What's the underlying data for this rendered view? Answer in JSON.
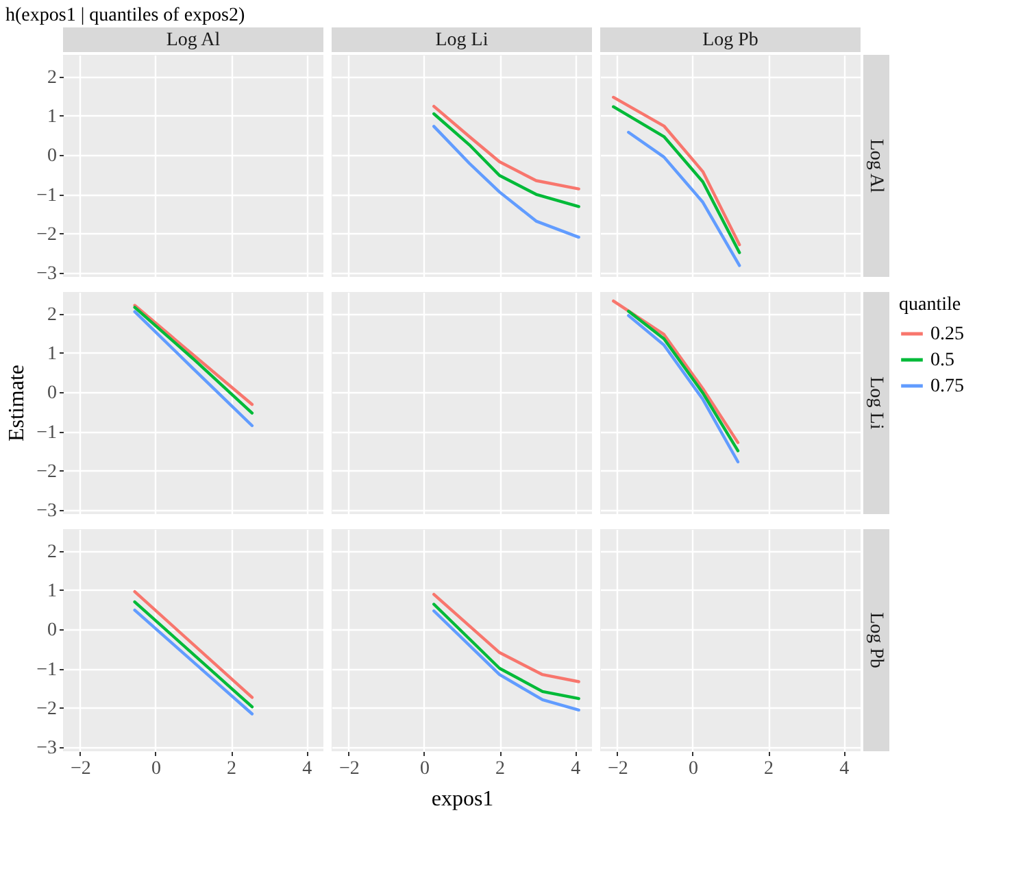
{
  "chart_data": [
    {
      "type": "line",
      "title": "h(expos1 | quantiles of expos2)",
      "subtitle": "Log Al",
      "xlim": [
        -2.45,
        4.45
      ],
      "ylim": [
        -3.1,
        2.55
      ],
      "xticks": [
        -2,
        0,
        2,
        4
      ],
      "yticks": [
        -3,
        -2,
        -1,
        0,
        1,
        2
      ],
      "grid": true,
      "tick_labels": "y"
    },
    {
      "type": "line",
      "subtitle": "Log Li",
      "xlim": [
        -2.45,
        4.45
      ],
      "ylim": [
        -3.1,
        2.55
      ],
      "xticks": [
        -2,
        0,
        2,
        4
      ],
      "yticks": [
        -3,
        -2,
        -1,
        0,
        1,
        2
      ],
      "grid": true,
      "tick_labels": false,
      "series": [
        {
          "color": "#f8766d",
          "x": [
            0.26,
            1.2,
            2.0,
            2.97,
            4.1
          ],
          "values": [
            1.24,
            0.47,
            -0.17,
            -0.65,
            -0.86
          ]
        },
        {
          "color": "#00ba38",
          "x": [
            0.26,
            1.2,
            2.0,
            2.97,
            4.1
          ],
          "values": [
            1.05,
            0.26,
            -0.52,
            -1.0,
            -1.31
          ]
        },
        {
          "color": "#619cff",
          "x": [
            0.26,
            1.2,
            2.0,
            2.97,
            4.1
          ],
          "values": [
            0.73,
            -0.21,
            -0.94,
            -1.68,
            -2.09
          ]
        }
      ]
    },
    {
      "type": "line",
      "subtitle": "Log Pb",
      "y2label": "Log Al",
      "xlim": [
        -2.45,
        4.45
      ],
      "ylim": [
        -3.1,
        2.55
      ],
      "xticks": [
        -2,
        0,
        2,
        4
      ],
      "yticks": [
        -3,
        -2,
        -1,
        0,
        1,
        2
      ],
      "grid": true,
      "tick_labels": false,
      "series": [
        {
          "color": "#f8766d",
          "x": [
            -2.1,
            -0.76,
            0.27,
            1.24
          ],
          "values": [
            1.47,
            0.74,
            -0.42,
            -2.28
          ]
        },
        {
          "color": "#00ba38",
          "x": [
            -2.1,
            -0.76,
            0.27,
            1.24
          ],
          "values": [
            1.23,
            0.47,
            -0.68,
            -2.48
          ]
        },
        {
          "color": "#619cff",
          "x": [
            -1.7,
            -0.76,
            0.27,
            1.24
          ],
          "values": [
            0.58,
            -0.05,
            -1.2,
            -2.81
          ]
        }
      ]
    },
    {
      "type": "line",
      "ylabel": "Estimate",
      "xlim": [
        -2.45,
        4.45
      ],
      "ylim": [
        -3.1,
        2.55
      ],
      "xticks": [
        -2,
        0,
        2,
        4
      ],
      "yticks": [
        -3,
        -2,
        -1,
        0,
        1,
        2
      ],
      "grid": true,
      "tick_labels": "y",
      "series": [
        {
          "color": "#f8766d",
          "x": [
            -0.55,
            1.0,
            2.56
          ],
          "values": [
            2.21,
            0.95,
            -0.31
          ]
        },
        {
          "color": "#00ba38",
          "x": [
            -0.55,
            1.0,
            2.56
          ],
          "values": [
            2.16,
            0.85,
            -0.53
          ]
        },
        {
          "color": "#619cff",
          "x": [
            -0.55,
            1.0,
            2.56
          ],
          "values": [
            2.05,
            0.6,
            -0.85
          ]
        }
      ]
    },
    {
      "type": "line",
      "xlim": [
        -2.45,
        4.45
      ],
      "ylim": [
        -3.1,
        2.55
      ],
      "xticks": [
        -2,
        0,
        2,
        4
      ],
      "yticks": [
        -3,
        -2,
        -1,
        0,
        1,
        2
      ],
      "grid": true,
      "tick_labels": false
    },
    {
      "type": "line",
      "y2label": "Log  Li",
      "legend": "right",
      "legend_title": "quantile",
      "xlim": [
        -2.45,
        4.45
      ],
      "ylim": [
        -3.1,
        2.55
      ],
      "xticks": [
        -2,
        0,
        2,
        4
      ],
      "yticks": [
        -3,
        -2,
        -1,
        0,
        1,
        2
      ],
      "grid": true,
      "tick_labels": false,
      "series": [
        {
          "name": "0.25",
          "color": "#f8766d",
          "x": [
            -2.1,
            -0.76,
            0.27,
            1.2
          ],
          "values": [
            2.32,
            1.47,
            0.09,
            -1.28
          ]
        },
        {
          "name": "0.5",
          "color": "#00ba38",
          "x": [
            -1.7,
            -0.76,
            0.27,
            1.2
          ],
          "values": [
            2.06,
            1.36,
            -0.02,
            -1.49
          ]
        },
        {
          "name": "0.75",
          "color": "#619cff",
          "x": [
            -1.7,
            -0.76,
            0.27,
            1.2
          ],
          "values": [
            1.95,
            1.2,
            -0.18,
            -1.77
          ]
        }
      ]
    },
    {
      "type": "line",
      "xlim": [
        -2.45,
        4.45
      ],
      "ylim": [
        -3.1,
        2.55
      ],
      "xticks": [
        -2,
        0,
        2,
        4
      ],
      "yticks": [
        -3,
        -2,
        -1,
        0,
        1,
        2
      ],
      "grid": true,
      "series": [
        {
          "color": "#f8766d",
          "x": [
            -0.55,
            2.56
          ],
          "values": [
            0.96,
            -1.73
          ]
        },
        {
          "color": "#00ba38",
          "x": [
            -0.55,
            2.56
          ],
          "values": [
            0.7,
            -1.97
          ]
        },
        {
          "color": "#619cff",
          "x": [
            -0.55,
            2.56
          ],
          "values": [
            0.49,
            -2.15
          ]
        }
      ]
    },
    {
      "type": "line",
      "xlabel": "expos1",
      "xlim": [
        -2.45,
        4.45
      ],
      "ylim": [
        -3.1,
        2.55
      ],
      "xticks": [
        -2,
        0,
        2,
        4
      ],
      "yticks": [
        -3,
        -2,
        -1,
        0,
        1,
        2
      ],
      "grid": true,
      "tick_labels": "x",
      "series": [
        {
          "color": "#f8766d",
          "x": [
            0.26,
            2.0,
            3.14,
            4.1
          ],
          "values": [
            0.89,
            -0.59,
            -1.15,
            -1.33
          ]
        },
        {
          "color": "#00ba38",
          "x": [
            0.26,
            2.0,
            3.14,
            4.1
          ],
          "values": [
            0.64,
            -0.99,
            -1.58,
            -1.76
          ]
        },
        {
          "color": "#619cff",
          "x": [
            0.26,
            2.0,
            3.14,
            4.1
          ],
          "values": [
            0.47,
            -1.15,
            -1.79,
            -2.05
          ]
        }
      ]
    },
    {
      "type": "line",
      "y2label": "Log Pb",
      "xlim": [
        -2.45,
        4.45
      ],
      "ylim": [
        -3.1,
        2.55
      ],
      "xticks": [
        -2,
        0,
        2,
        4
      ],
      "yticks": [
        -3,
        -2,
        -1,
        0,
        1,
        2
      ],
      "grid": true,
      "tick_labels": "x"
    }
  ]
}
